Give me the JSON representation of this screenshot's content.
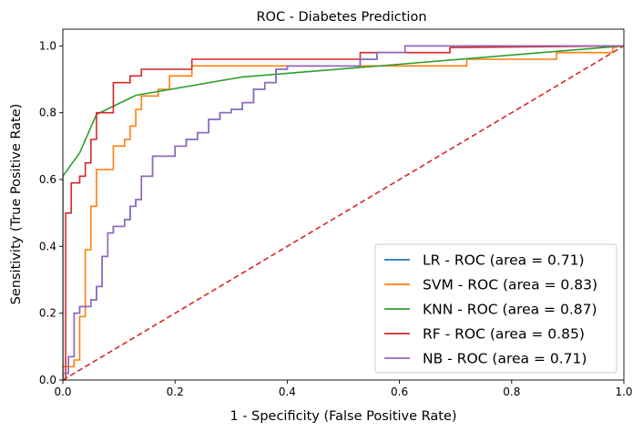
{
  "chart_data": {
    "type": "line",
    "title": "ROC - Diabetes Prediction",
    "xlabel": "1 - Specificity (False Positive Rate)",
    "ylabel": "Sensitivity (True Positive Rate)",
    "xlim": [
      0,
      1
    ],
    "ylim": [
      0,
      1.05
    ],
    "xticks": [
      {
        "value": 0.0,
        "label": "0.0"
      },
      {
        "value": 0.2,
        "label": "0.2"
      },
      {
        "value": 0.4,
        "label": "0.4"
      },
      {
        "value": 0.6,
        "label": "0.6"
      },
      {
        "value": 0.8,
        "label": "0.8"
      },
      {
        "value": 1.0,
        "label": "1.0"
      }
    ],
    "yticks": [
      {
        "value": 0.0,
        "label": "0.0"
      },
      {
        "value": 0.2,
        "label": "0.2"
      },
      {
        "value": 0.4,
        "label": "0.4"
      },
      {
        "value": 0.6,
        "label": "0.6"
      },
      {
        "value": 0.8,
        "label": "0.8"
      },
      {
        "value": 1.0,
        "label": "1.0"
      }
    ],
    "grid": false,
    "legend_position": "bottom-right",
    "reference_line": {
      "x": [
        0,
        1
      ],
      "y": [
        0,
        1
      ],
      "color": "#d62728",
      "style": "dashed"
    },
    "series": [
      {
        "name": "LR - ROC (area = 0.71)",
        "color": "#1f77b4",
        "x": [
          0,
          0,
          0.01,
          0.01,
          0.02,
          0.02,
          0.03,
          0.03,
          0.04,
          0.04,
          0.05,
          0.05,
          0.06,
          0.06,
          0.07,
          0.07,
          0.08,
          0.08,
          0.09,
          0.09,
          0.11,
          0.11,
          0.12,
          0.12,
          0.13,
          0.13,
          0.14,
          0.14,
          0.16,
          0.16,
          0.2,
          0.2,
          0.22,
          0.22,
          0.24,
          0.24,
          0.26,
          0.26,
          0.28,
          0.28,
          0.3,
          0.3,
          0.32,
          0.32,
          0.34,
          0.34,
          0.36,
          0.36,
          0.38,
          0.38,
          0.4,
          0.4,
          0.53,
          0.53,
          0.56,
          0.56,
          0.61,
          0.61,
          1
        ],
        "y": [
          0,
          0.02,
          0.02,
          0.07,
          0.07,
          0.2,
          0.2,
          0.22,
          0.22,
          0.22,
          0.22,
          0.24,
          0.24,
          0.28,
          0.28,
          0.37,
          0.37,
          0.44,
          0.44,
          0.46,
          0.46,
          0.48,
          0.48,
          0.52,
          0.52,
          0.54,
          0.54,
          0.61,
          0.61,
          0.67,
          0.67,
          0.7,
          0.7,
          0.72,
          0.72,
          0.74,
          0.74,
          0.78,
          0.78,
          0.8,
          0.8,
          0.81,
          0.81,
          0.83,
          0.83,
          0.87,
          0.87,
          0.89,
          0.89,
          0.93,
          0.93,
          0.94,
          0.94,
          0.96,
          0.96,
          0.98,
          0.98,
          1.0,
          1.0
        ]
      },
      {
        "name": "SVM - ROC (area = 0.83)",
        "color": "#ff7f0e",
        "x": [
          0,
          0,
          0.02,
          0.02,
          0.03,
          0.03,
          0.04,
          0.04,
          0.05,
          0.05,
          0.06,
          0.06,
          0.09,
          0.09,
          0.11,
          0.11,
          0.12,
          0.12,
          0.13,
          0.13,
          0.14,
          0.14,
          0.17,
          0.17,
          0.19,
          0.19,
          0.23,
          0.23,
          0.72,
          0.72,
          0.88,
          0.88,
          0.98,
          0.98,
          1
        ],
        "y": [
          0,
          0.04,
          0.04,
          0.06,
          0.06,
          0.19,
          0.19,
          0.39,
          0.39,
          0.52,
          0.52,
          0.63,
          0.63,
          0.7,
          0.7,
          0.72,
          0.72,
          0.76,
          0.76,
          0.81,
          0.81,
          0.85,
          0.85,
          0.87,
          0.87,
          0.91,
          0.91,
          0.94,
          0.94,
          0.96,
          0.96,
          0.98,
          0.98,
          0.995,
          1.0
        ]
      },
      {
        "name": "KNN - ROC (area = 0.87)",
        "color": "#2ca02c",
        "x": [
          0,
          0,
          0.03,
          0.06,
          0.13,
          0.32,
          0.6,
          1
        ],
        "y": [
          0,
          0.61,
          0.68,
          0.795,
          0.852,
          0.907,
          0.945,
          1.0
        ]
      },
      {
        "name": "RF - ROC (area = 0.85)",
        "color": "#d62728",
        "x": [
          0,
          0.005,
          0.005,
          0.015,
          0.015,
          0.03,
          0.03,
          0.04,
          0.04,
          0.05,
          0.05,
          0.06,
          0.06,
          0.09,
          0.09,
          0.12,
          0.12,
          0.14,
          0.14,
          0.23,
          0.23,
          0.53,
          0.53,
          0.69,
          0.69,
          1
        ],
        "y": [
          0,
          0,
          0.5,
          0.5,
          0.59,
          0.59,
          0.61,
          0.61,
          0.65,
          0.65,
          0.72,
          0.72,
          0.8,
          0.8,
          0.89,
          0.89,
          0.91,
          0.91,
          0.93,
          0.93,
          0.96,
          0.96,
          0.98,
          0.98,
          0.995,
          1.0
        ]
      },
      {
        "name": "NB - ROC (area = 0.71)",
        "color": "#9467bd",
        "x": [
          0,
          0,
          0.01,
          0.01,
          0.02,
          0.02,
          0.03,
          0.03,
          0.04,
          0.04,
          0.05,
          0.05,
          0.06,
          0.06,
          0.07,
          0.07,
          0.08,
          0.08,
          0.09,
          0.09,
          0.11,
          0.11,
          0.12,
          0.12,
          0.13,
          0.13,
          0.14,
          0.14,
          0.16,
          0.16,
          0.2,
          0.2,
          0.22,
          0.22,
          0.24,
          0.24,
          0.26,
          0.26,
          0.28,
          0.28,
          0.3,
          0.3,
          0.32,
          0.32,
          0.34,
          0.34,
          0.36,
          0.36,
          0.38,
          0.38,
          0.4,
          0.4,
          0.53,
          0.53,
          0.56,
          0.56,
          0.61,
          0.61,
          1
        ],
        "y": [
          0,
          0.02,
          0.02,
          0.07,
          0.07,
          0.2,
          0.2,
          0.22,
          0.22,
          0.22,
          0.22,
          0.24,
          0.24,
          0.28,
          0.28,
          0.37,
          0.37,
          0.44,
          0.44,
          0.46,
          0.46,
          0.48,
          0.48,
          0.52,
          0.52,
          0.54,
          0.54,
          0.61,
          0.61,
          0.67,
          0.67,
          0.7,
          0.7,
          0.72,
          0.72,
          0.74,
          0.74,
          0.78,
          0.78,
          0.8,
          0.8,
          0.81,
          0.81,
          0.83,
          0.83,
          0.87,
          0.87,
          0.89,
          0.89,
          0.93,
          0.93,
          0.94,
          0.94,
          0.96,
          0.96,
          0.98,
          0.98,
          1.0,
          1.0
        ]
      }
    ]
  }
}
